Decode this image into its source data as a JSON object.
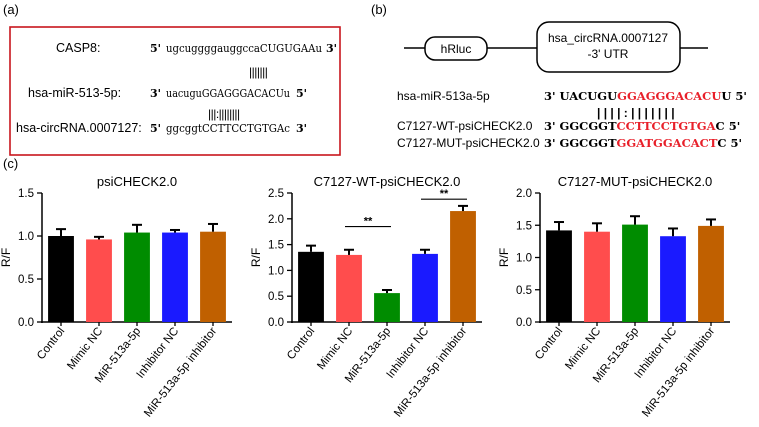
{
  "panels": {
    "a": {
      "label": "(a)",
      "rows": [
        {
          "name": "CASP8:",
          "prime_left": "5'",
          "seq": "ugcuggggauggccaCUGUGAAu",
          "prime_right": "3'"
        },
        {
          "name": "hsa-miR-513-5p:",
          "prime_left": "3'",
          "seq": "uacuguGGAGGGACACUu",
          "prime_right": "5'"
        },
        {
          "name": "hsa-circRNA.0007127:",
          "prime_left": "5'",
          "seq": "ggcggtCCTTCCTGTGAc",
          "prime_right": "3'"
        }
      ],
      "pairing_1": "|||||||",
      "pairing_2": "|||:||||||||"
    },
    "b": {
      "label": "(b)",
      "box1": "hRluc",
      "box2_line1": "hsa_circRNA.0007127",
      "box2_line2": "-3' UTR",
      "mir_name": "hsa-miR-513a-5p",
      "mir_prefix": "3' UACUGU",
      "mir_red": "GGAGGGACACU",
      "mir_suffix": "U 5'",
      "wt_name": "C7127-WT-psiCHECK2.0",
      "wt_prefix": "3' GGCGGT",
      "wt_red": "CCTTCCTGTGA",
      "wt_suffix": "C 5'",
      "mut_name": "C7127-MUT-psiCHECK2.0",
      "mut_prefix": "3' GGCGGT",
      "mut_red": "GGATGGACACT",
      "mut_suffix": "C 5'",
      "pairing": "| | | | : | | | | | | |",
      "red_color": "#e8202a"
    },
    "c": {
      "label": "(c)"
    }
  },
  "chart_data": [
    {
      "type": "bar",
      "title": "psiCHECK2.0",
      "ylabel": "R/F",
      "ylim": [
        0,
        1.5
      ],
      "yticks": [
        "0.0",
        "0.5",
        "1.0",
        "1.5"
      ],
      "categories": [
        "Control",
        "Mimic NC",
        "MiR-513a-5p",
        "Inhibitor NC",
        "MiR-513a-5p inhibitor"
      ],
      "values": [
        1.0,
        0.96,
        1.04,
        1.04,
        1.05
      ],
      "errors": [
        0.08,
        0.03,
        0.09,
        0.03,
        0.09
      ],
      "colors": [
        "#000000",
        "#ff4d4d",
        "#008c00",
        "#1a1aff",
        "#c06000"
      ],
      "significance": []
    },
    {
      "type": "bar",
      "title": "C7127-WT-psiCHECK2.0",
      "ylabel": "R/F",
      "ylim": [
        0,
        2.5
      ],
      "yticks": [
        "0.0",
        "0.5",
        "1.0",
        "1.5",
        "2.0",
        "2.5"
      ],
      "categories": [
        "Control",
        "Mimic NC",
        "MiR-513a-5p",
        "Inhibitor NC",
        "MiR-513a-5p inhibitor"
      ],
      "values": [
        1.36,
        1.3,
        0.56,
        1.32,
        2.15
      ],
      "errors": [
        0.12,
        0.1,
        0.06,
        0.08,
        0.1
      ],
      "colors": [
        "#000000",
        "#ff4d4d",
        "#008c00",
        "#1a1aff",
        "#c06000"
      ],
      "significance": [
        {
          "from": 1,
          "to": 2,
          "label": "**",
          "level": 1.85
        },
        {
          "from": 3,
          "to": 4,
          "label": "**",
          "level": 2.38
        }
      ]
    },
    {
      "type": "bar",
      "title": "C7127-MUT-psiCHECK2.0",
      "ylabel": "R/F",
      "ylim": [
        0,
        2.0
      ],
      "yticks": [
        "0.0",
        "0.5",
        "1.0",
        "1.5",
        "2.0"
      ],
      "categories": [
        "Control",
        "Mimic NC",
        "MiR-513a-5p",
        "Inhibitor NC",
        "MiR-513a-5p inhibitor"
      ],
      "values": [
        1.42,
        1.4,
        1.51,
        1.33,
        1.49
      ],
      "errors": [
        0.13,
        0.13,
        0.13,
        0.12,
        0.1
      ],
      "colors": [
        "#000000",
        "#ff4d4d",
        "#008c00",
        "#1a1aff",
        "#c06000"
      ],
      "significance": []
    }
  ]
}
